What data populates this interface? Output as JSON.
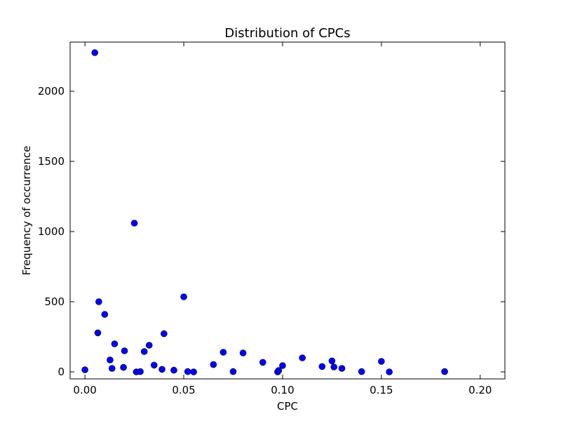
{
  "chart_data": {
    "type": "scatter",
    "title": "Distribution of CPCs",
    "xlabel": "CPC",
    "ylabel": "Frequency of occurrence",
    "xlim": [
      -0.0075,
      0.2125
    ],
    "ylim": [
      -50,
      2350
    ],
    "xticks": [
      0.0,
      0.05,
      0.1,
      0.15,
      0.2
    ],
    "xtick_labels": [
      "0.00",
      "0.05",
      "0.10",
      "0.15",
      "0.20"
    ],
    "yticks": [
      0,
      500,
      1000,
      1500,
      2000
    ],
    "ytick_labels": [
      "0",
      "500",
      "1000",
      "1500",
      "2000"
    ],
    "grid": false,
    "marker_color": "#0000ff",
    "points": [
      {
        "x": 0.0,
        "y": 15
      },
      {
        "x": 0.005,
        "y": 2275
      },
      {
        "x": 0.0065,
        "y": 278
      },
      {
        "x": 0.007,
        "y": 500
      },
      {
        "x": 0.01,
        "y": 410
      },
      {
        "x": 0.0127,
        "y": 85
      },
      {
        "x": 0.0137,
        "y": 25
      },
      {
        "x": 0.015,
        "y": 200
      },
      {
        "x": 0.0195,
        "y": 32
      },
      {
        "x": 0.02,
        "y": 150
      },
      {
        "x": 0.025,
        "y": 1060
      },
      {
        "x": 0.026,
        "y": 0
      },
      {
        "x": 0.028,
        "y": 2
      },
      {
        "x": 0.03,
        "y": 145
      },
      {
        "x": 0.0325,
        "y": 190
      },
      {
        "x": 0.035,
        "y": 48
      },
      {
        "x": 0.039,
        "y": 18
      },
      {
        "x": 0.04,
        "y": 272
      },
      {
        "x": 0.045,
        "y": 12
      },
      {
        "x": 0.05,
        "y": 535
      },
      {
        "x": 0.052,
        "y": 2
      },
      {
        "x": 0.055,
        "y": 0
      },
      {
        "x": 0.065,
        "y": 52
      },
      {
        "x": 0.07,
        "y": 140
      },
      {
        "x": 0.075,
        "y": 2
      },
      {
        "x": 0.08,
        "y": 135
      },
      {
        "x": 0.09,
        "y": 68
      },
      {
        "x": 0.0975,
        "y": 0
      },
      {
        "x": 0.098,
        "y": 10
      },
      {
        "x": 0.1,
        "y": 45
      },
      {
        "x": 0.11,
        "y": 100
      },
      {
        "x": 0.12,
        "y": 38
      },
      {
        "x": 0.125,
        "y": 78
      },
      {
        "x": 0.126,
        "y": 35
      },
      {
        "x": 0.13,
        "y": 25
      },
      {
        "x": 0.14,
        "y": 2
      },
      {
        "x": 0.15,
        "y": 75
      },
      {
        "x": 0.154,
        "y": 0
      },
      {
        "x": 0.182,
        "y": 2
      }
    ]
  }
}
